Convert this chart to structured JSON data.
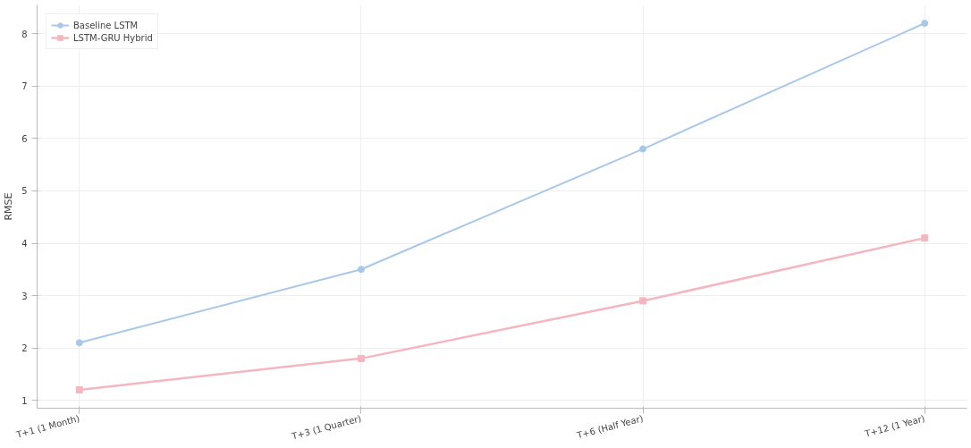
{
  "chart_data": {
    "type": "line",
    "ylabel": "RMSE",
    "categories": [
      "T+1 (1 Month)",
      "T+3 (1 Quarter)",
      "T+6 (Half Year)",
      "T+12 (1 Year)"
    ],
    "series": [
      {
        "name": "Baseline LSTM",
        "color": "#a8c8e8",
        "marker": "circle",
        "values": [
          2.1,
          3.5,
          5.8,
          8.2
        ]
      },
      {
        "name": "LSTM-GRU Hybrid",
        "color": "#f4b6bf",
        "marker": "square",
        "values": [
          1.2,
          1.8,
          2.9,
          4.1
        ]
      }
    ],
    "ylim": [
      0.85,
      8.55
    ],
    "yticks": [
      1,
      2,
      3,
      4,
      5,
      6,
      7,
      8
    ],
    "grid": true,
    "legend": "top left",
    "line_style": "solid"
  }
}
